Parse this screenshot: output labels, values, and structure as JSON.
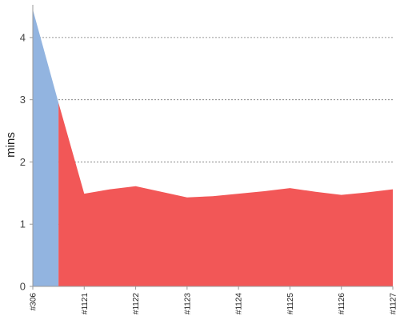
{
  "chart_data": {
    "type": "area",
    "ylabel": "mins",
    "xlabel": "",
    "ylim": [
      0,
      4.5
    ],
    "yticks": [
      0,
      1,
      2,
      3,
      4
    ],
    "grid": "horizontal-dashed",
    "legend": "none",
    "x_tick_labels": [
      "#306",
      "#1121",
      "#1122",
      "#1123",
      "#1124",
      "#1125",
      "#1126",
      "#1127"
    ],
    "series": [
      {
        "color": "#92b4e0",
        "points": [
          {
            "x": 0.0,
            "y": 4.45
          },
          {
            "x": 0.5,
            "y": 2.95
          }
        ]
      },
      {
        "color": "#f25757",
        "points": [
          {
            "x": 0.5,
            "y": 2.95
          },
          {
            "x": 1.0,
            "y": 1.49
          },
          {
            "x": 1.5,
            "y": 1.56
          },
          {
            "x": 2.0,
            "y": 1.61
          },
          {
            "x": 2.5,
            "y": 1.52
          },
          {
            "x": 3.0,
            "y": 1.43
          },
          {
            "x": 3.5,
            "y": 1.45
          },
          {
            "x": 4.0,
            "y": 1.49
          },
          {
            "x": 4.5,
            "y": 1.53
          },
          {
            "x": 5.0,
            "y": 1.58
          },
          {
            "x": 5.5,
            "y": 1.52
          },
          {
            "x": 6.0,
            "y": 1.47
          },
          {
            "x": 6.5,
            "y": 1.51
          },
          {
            "x": 7.0,
            "y": 1.56
          }
        ]
      }
    ]
  }
}
